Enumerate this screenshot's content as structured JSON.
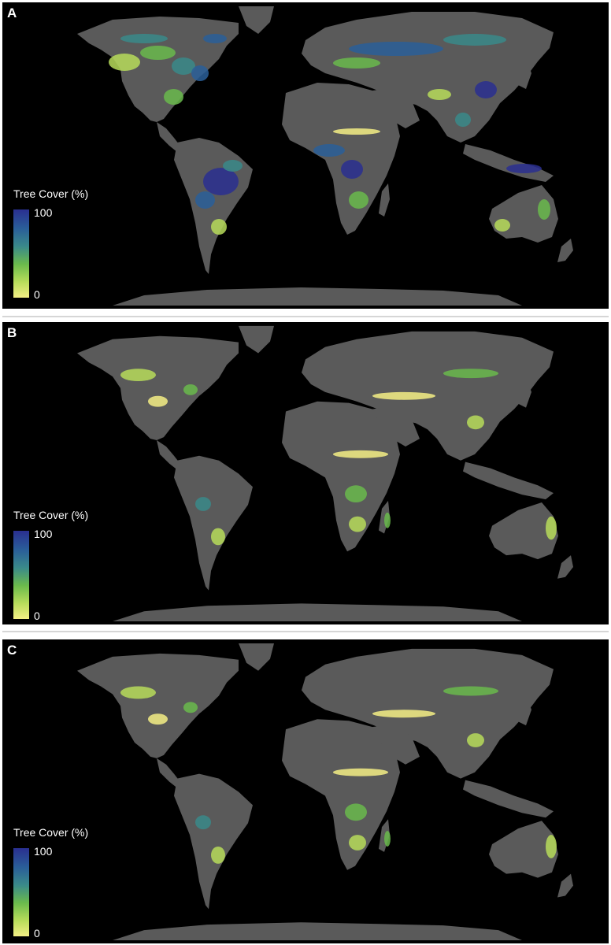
{
  "panels": [
    {
      "letter": "A",
      "legend": {
        "title": "Tree Cover (%)",
        "max": "100",
        "min": "0"
      },
      "style": "full"
    },
    {
      "letter": "B",
      "legend": {
        "title": "Tree Cover (%)",
        "max": "100",
        "min": "0"
      },
      "style": "sparse"
    },
    {
      "letter": "C",
      "legend": {
        "title": "Tree Cover (%)",
        "max": "100",
        "min": "0"
      },
      "style": "sparse"
    }
  ],
  "colors": {
    "ocean": "#000000",
    "land_no_cover": "#5a5a5a",
    "ramp_high": "#2a2f91",
    "ramp_mid_high": "#2a5f99",
    "ramp_mid": "#3a8a8a",
    "ramp_mid_low": "#6aba4c",
    "ramp_low": "#b7dc5a",
    "ramp_min": "#f4ef85"
  }
}
